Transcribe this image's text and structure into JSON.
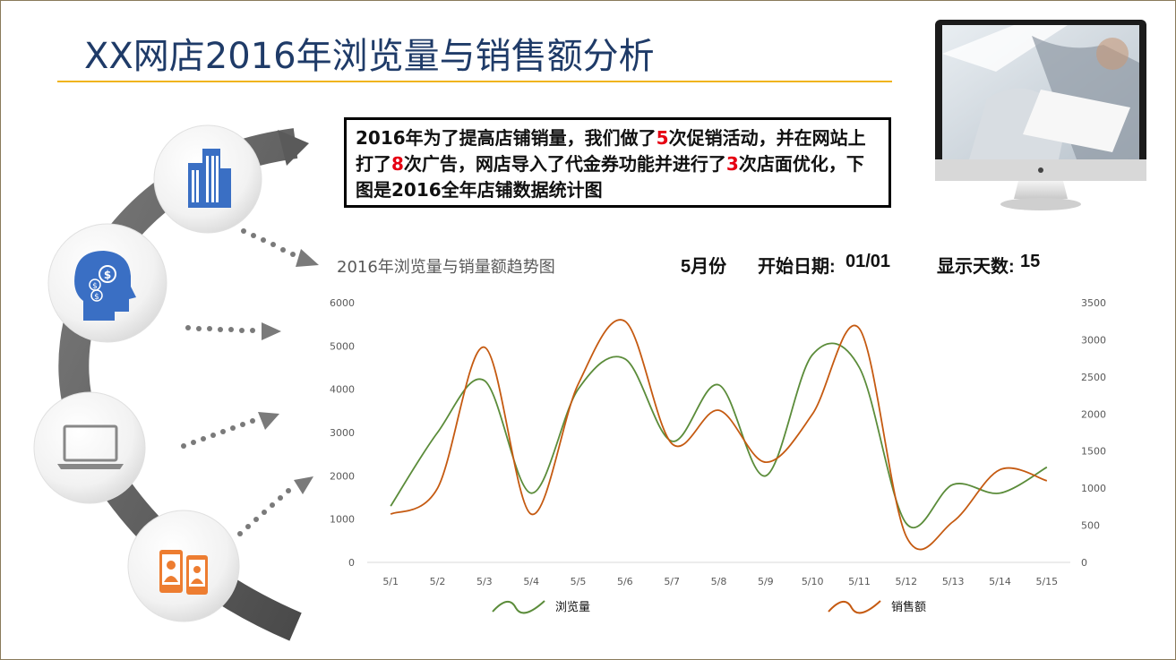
{
  "title": "XX网店2016年浏览量与销售额分析",
  "callout": {
    "p1": "2016年为了提高店铺销量，我们做了",
    "n1": "5",
    "p2": "次促销活动，并在网站上打了",
    "n2": "8",
    "p3": "次广告，网店导入了代金券功能并进行了",
    "n3": "3",
    "p4": "次店面优化，下图是2016全年店铺数据统计图"
  },
  "controls": {
    "month": "5月份",
    "start_label": "开始日期:",
    "start_value": "01/01",
    "days_label": "显示天数:",
    "days_value": "15"
  },
  "colors": {
    "title": "#1f3b68",
    "accent": "#f0b41c",
    "views": "#5b8c3a",
    "sales": "#c55a11",
    "icon_blue": "#3a6fc4",
    "icon_orange": "#ed7d31"
  },
  "icons": [
    "building-icon",
    "head-money-icon",
    "laptop-icon",
    "mobile-users-icon"
  ],
  "chart_data": {
    "type": "line",
    "title": "2016年浏览量与销量额趋势图",
    "categories": [
      "5/1",
      "5/2",
      "5/3",
      "5/4",
      "5/5",
      "5/6",
      "5/7",
      "5/8",
      "5/9",
      "5/10",
      "5/11",
      "5/12",
      "5/13",
      "5/14",
      "5/15"
    ],
    "series": [
      {
        "name": "浏览量",
        "axis": "left",
        "values": [
          1300,
          3000,
          4200,
          1600,
          4000,
          4700,
          2800,
          4100,
          2000,
          4800,
          4500,
          900,
          1800,
          1600,
          2200
        ]
      },
      {
        "name": "销售额",
        "axis": "right",
        "values": [
          650,
          1000,
          2900,
          650,
          2400,
          3250,
          1600,
          2050,
          1350,
          2000,
          3150,
          350,
          550,
          1250,
          1100
        ]
      }
    ],
    "left_axis": {
      "ylim": [
        0,
        6000
      ],
      "ticks": [
        0,
        1000,
        2000,
        3000,
        4000,
        5000,
        6000
      ]
    },
    "right_axis": {
      "ylim": [
        0,
        3500
      ],
      "ticks": [
        0,
        500,
        1000,
        1500,
        2000,
        2500,
        3000,
        3500
      ]
    },
    "grid": false,
    "legend_position": "bottom"
  }
}
